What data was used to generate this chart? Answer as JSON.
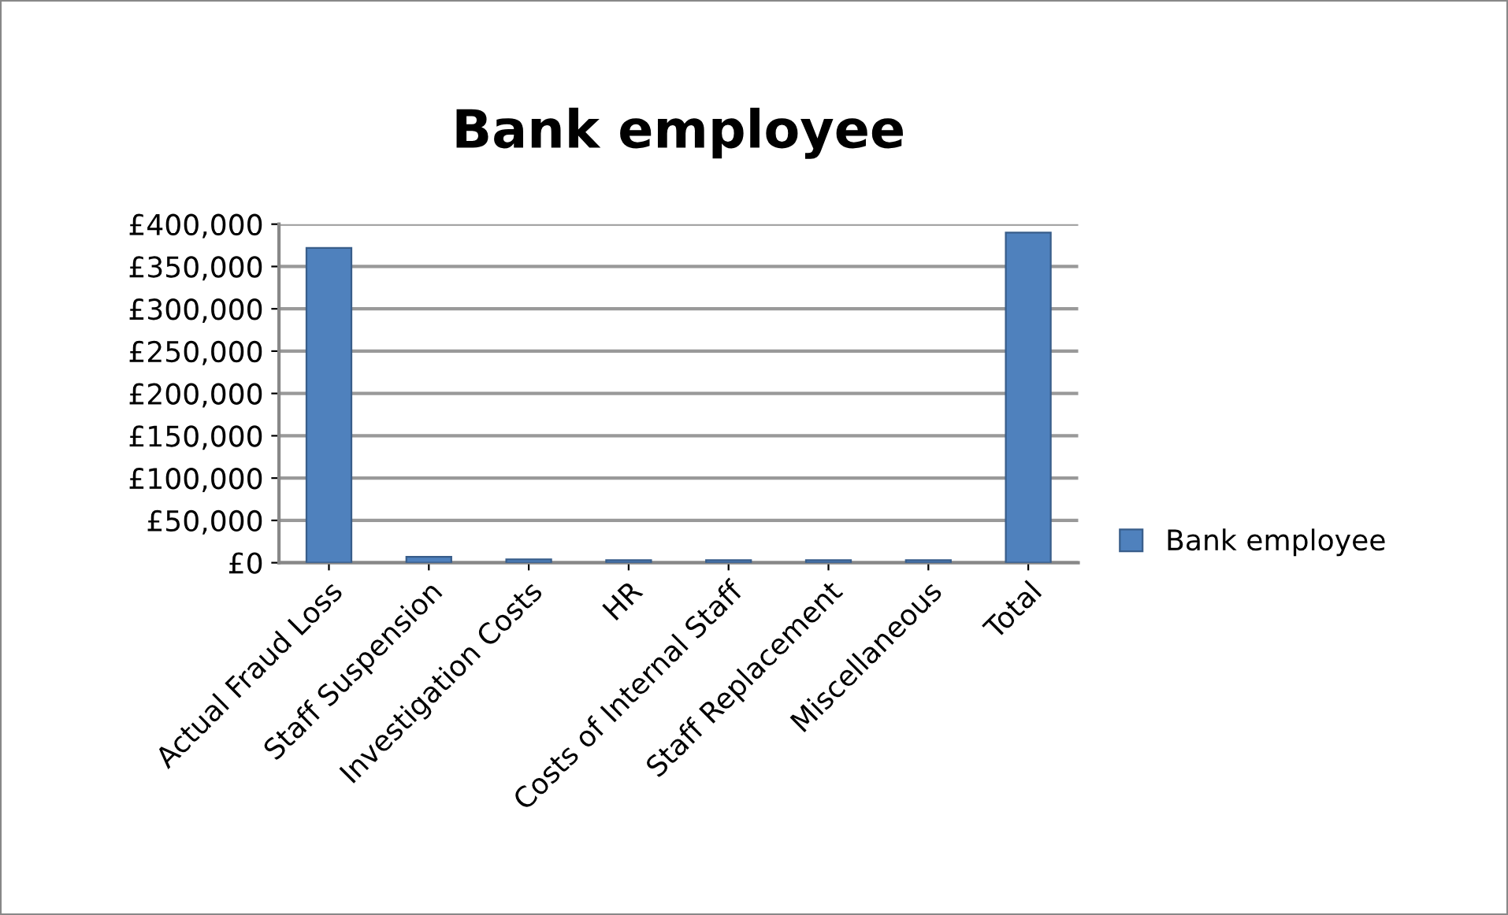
{
  "chart_data": {
    "type": "bar",
    "title": "Bank employee",
    "categories": [
      "Actual Fraud Loss",
      "Staff Suspension",
      "Investigation Costs",
      "HR",
      "Costs of Internal Staff",
      "Staff Replacement",
      "Miscellaneous",
      "Total"
    ],
    "series": [
      {
        "name": "Bank employee",
        "color": "#4f81bd",
        "values": [
          372000,
          7000,
          4000,
          3000,
          3000,
          3000,
          3000,
          390000
        ]
      }
    ],
    "ylim": [
      0,
      400000
    ],
    "yticks": [
      {
        "value": 0,
        "label": "£0"
      },
      {
        "value": 50000,
        "label": "£50,000"
      },
      {
        "value": 100000,
        "label": "£100,000"
      },
      {
        "value": 150000,
        "label": "£150,000"
      },
      {
        "value": 200000,
        "label": "£200,000"
      },
      {
        "value": 250000,
        "label": "£250,000"
      },
      {
        "value": 300000,
        "label": "£300,000"
      },
      {
        "value": 350000,
        "label": "£350,000"
      },
      {
        "value": 400000,
        "label": "£400,000"
      }
    ],
    "grid": "y",
    "legend": "right"
  }
}
